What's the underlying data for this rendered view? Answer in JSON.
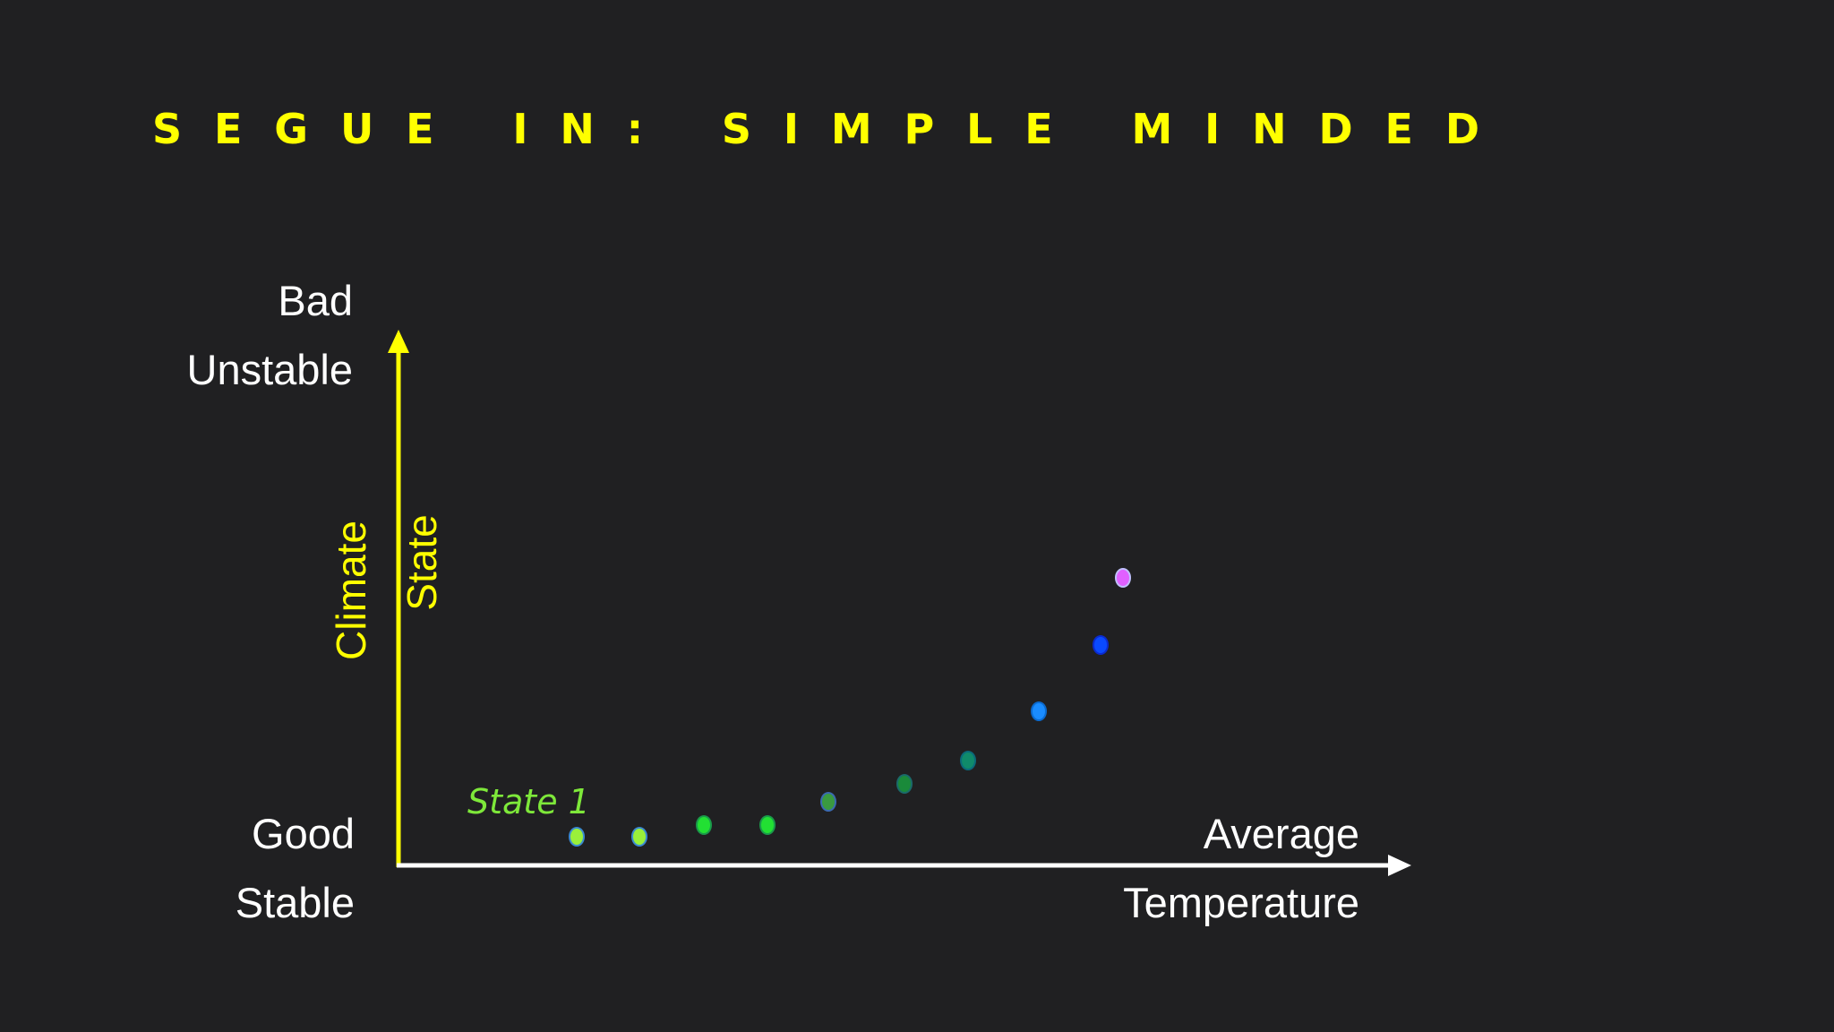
{
  "title": "Segue in: Simple minded",
  "y_axis": {
    "top_labels": [
      "Bad",
      "Unstable"
    ],
    "bottom_labels": [
      "Good",
      "Stable"
    ],
    "title": [
      "Climate",
      "State"
    ]
  },
  "x_axis": {
    "labels": [
      "Average",
      "Temperature"
    ]
  },
  "annotation": "State 1"
}
